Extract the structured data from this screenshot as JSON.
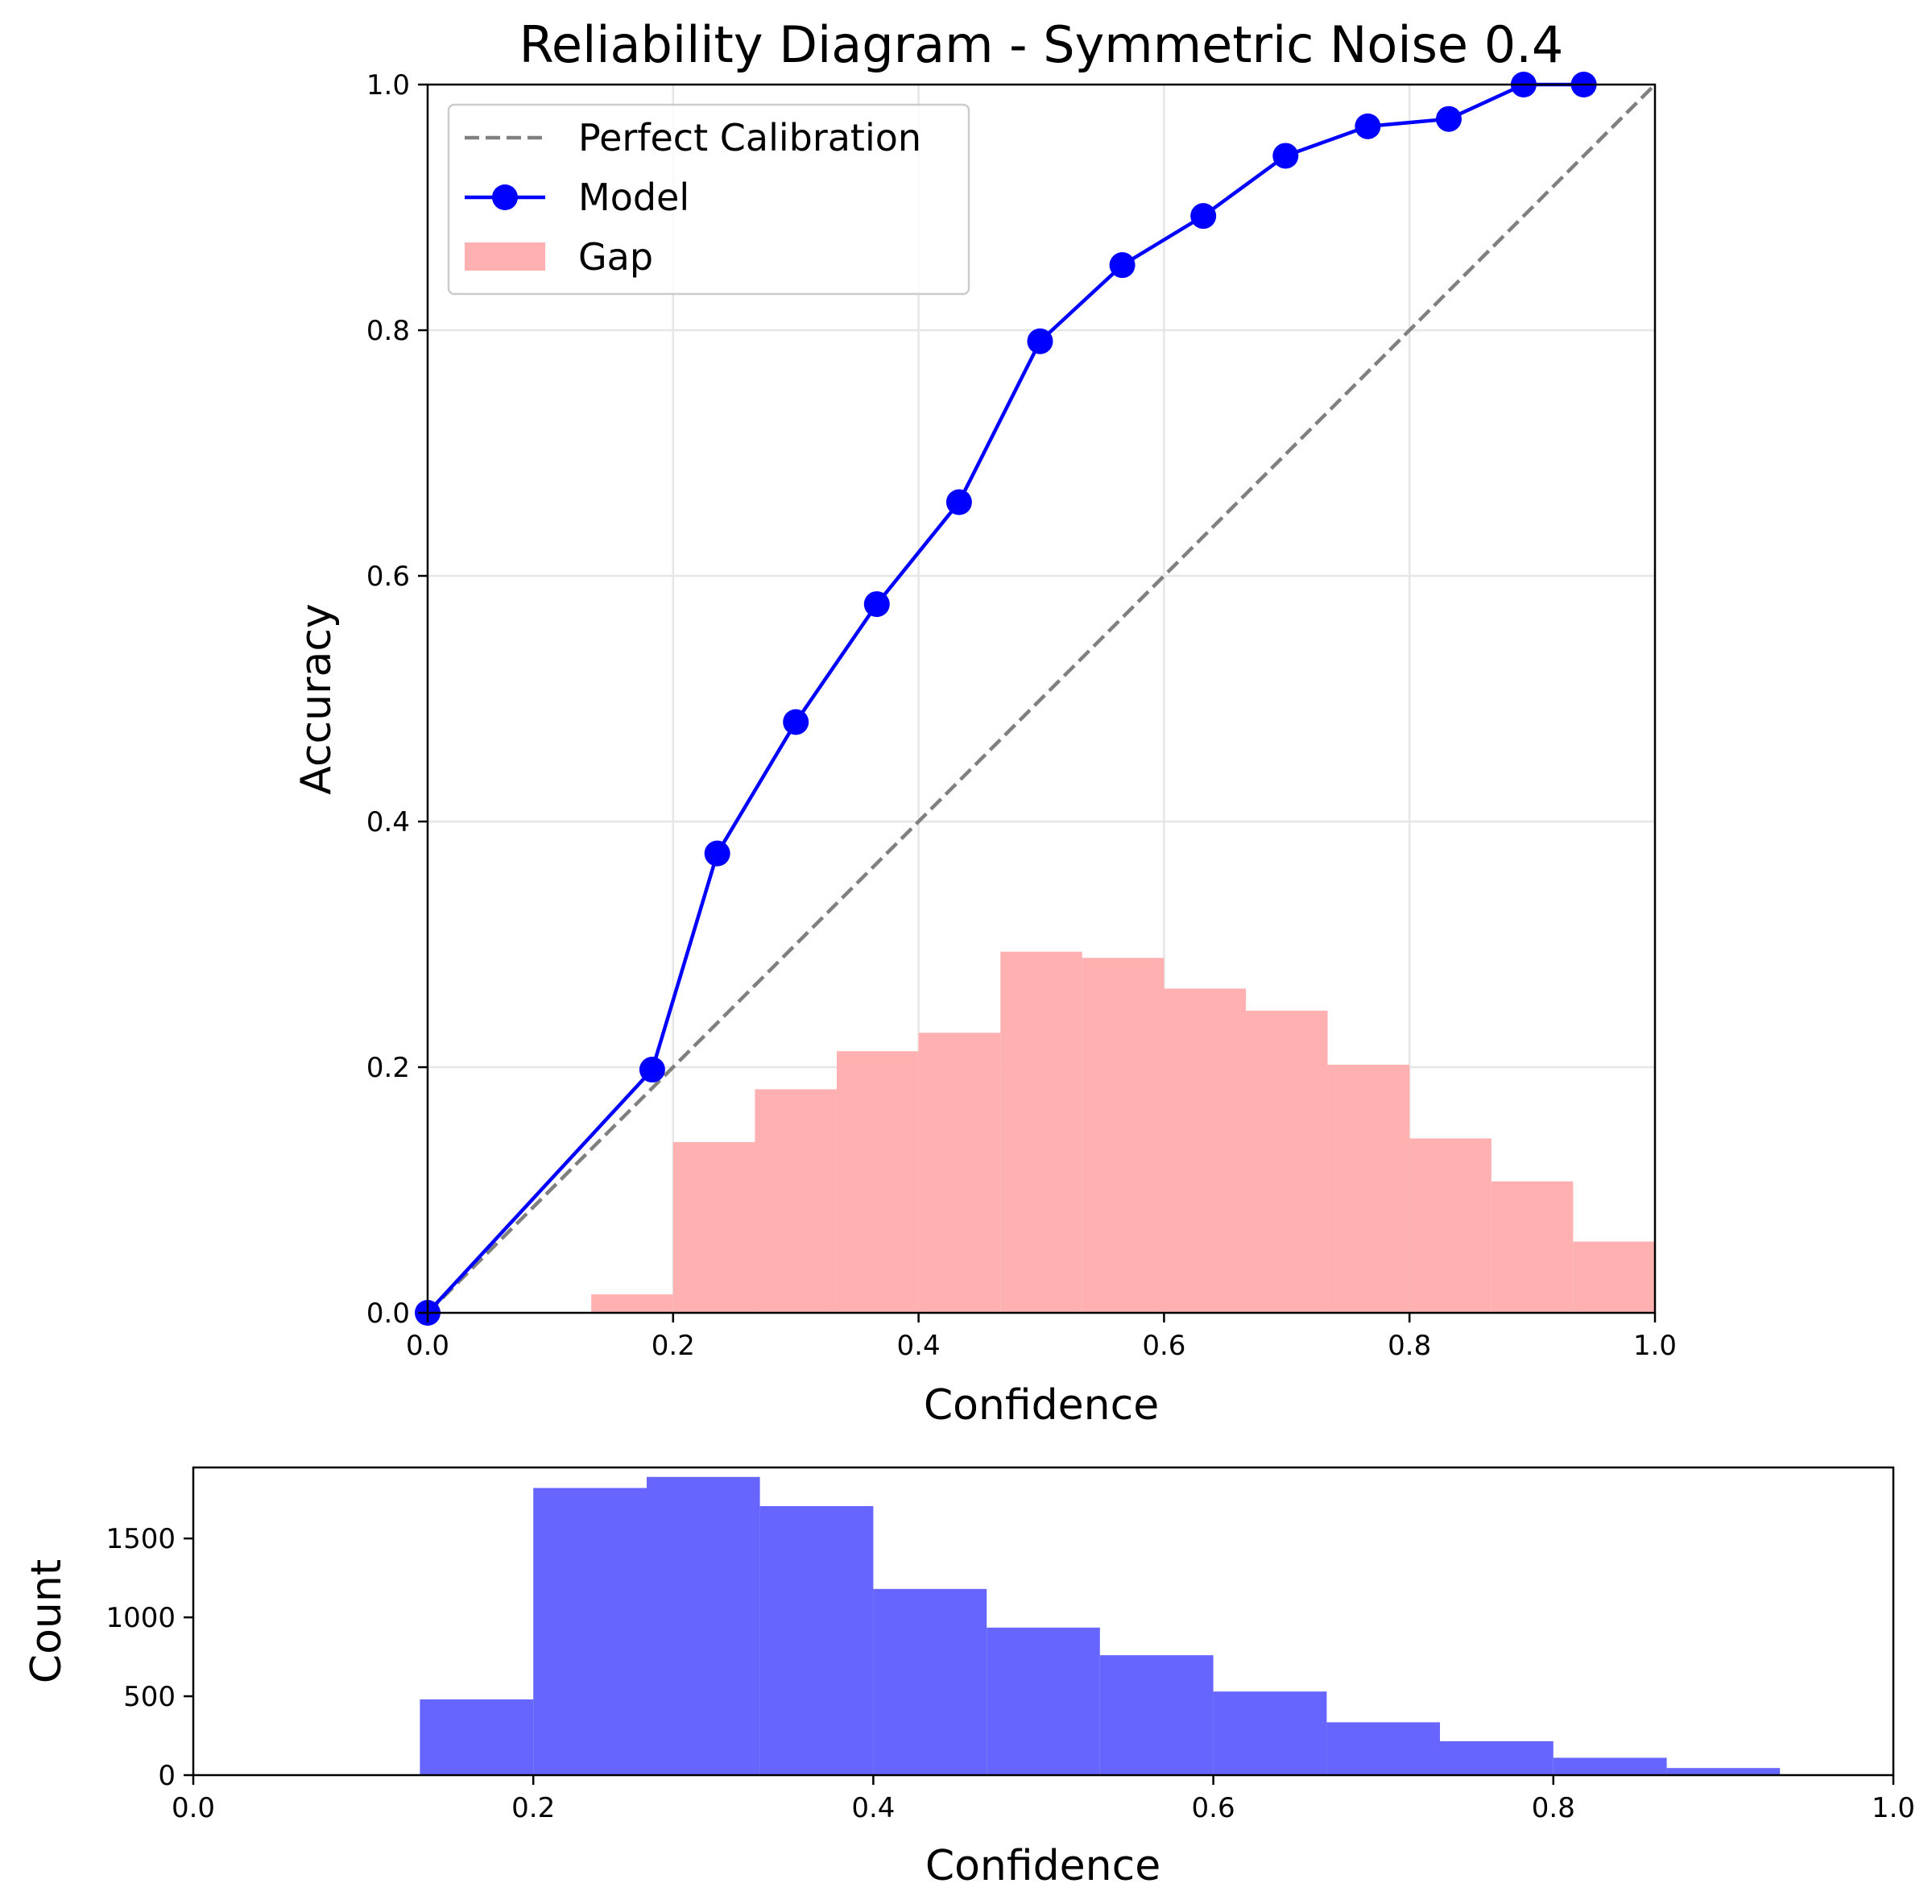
{
  "colors": {
    "model": "#0000ff",
    "diagonal": "#808080",
    "gap": "#ffb1b1",
    "hist": "#6666ff",
    "grid": "#e6e6e6"
  },
  "chart_data": [
    {
      "type": "line",
      "title": "Reliability Diagram - Symmetric Noise 0.4",
      "xlabel": "Confidence",
      "ylabel": "Accuracy",
      "xlim": [
        0,
        1
      ],
      "ylim": [
        0,
        1
      ],
      "xticks": [
        "0.0",
        "0.2",
        "0.4",
        "0.6",
        "0.8",
        "1.0"
      ],
      "yticks": [
        "0.0",
        "0.2",
        "0.4",
        "0.6",
        "0.8",
        "1.0"
      ],
      "grid": true,
      "legend": {
        "placement": "top-left",
        "entries": [
          {
            "label": "Perfect Calibration",
            "icon": "dashed-line"
          },
          {
            "label": "Model",
            "icon": "line-marker"
          },
          {
            "label": "Gap",
            "icon": "patch"
          }
        ]
      },
      "series": [
        {
          "name": "Perfect Calibration",
          "type": "line",
          "style": "dashed",
          "x": [
            0,
            1
          ],
          "y": [
            0,
            1
          ]
        },
        {
          "name": "Model",
          "type": "line",
          "marker": "circle",
          "x": [
            0.0,
            0.183,
            0.236,
            0.3,
            0.366,
            0.433,
            0.499,
            0.566,
            0.632,
            0.699,
            0.766,
            0.832,
            0.893,
            0.942
          ],
          "y": [
            0.0,
            0.198,
            0.374,
            0.481,
            0.577,
            0.66,
            0.791,
            0.853,
            0.893,
            0.942,
            0.966,
            0.972,
            1.0,
            1.0
          ]
        },
        {
          "name": "Gap",
          "type": "bar",
          "bin_edges": [
            0.0,
            0.0667,
            0.1333,
            0.2,
            0.2667,
            0.3333,
            0.4,
            0.4667,
            0.5333,
            0.6,
            0.6667,
            0.7333,
            0.8,
            0.8667,
            0.9333,
            1.0
          ],
          "values": [
            0.0,
            0.0,
            0.015,
            0.139,
            0.182,
            0.213,
            0.228,
            0.294,
            0.289,
            0.264,
            0.246,
            0.202,
            0.142,
            0.107,
            0.058
          ]
        }
      ]
    },
    {
      "type": "bar",
      "xlabel": "Confidence",
      "ylabel": "Count",
      "xlim": [
        0,
        1
      ],
      "ylim": [
        0,
        1950
      ],
      "xticks": [
        "0.0",
        "0.2",
        "0.4",
        "0.6",
        "0.8",
        "1.0"
      ],
      "yticks": [
        "0",
        "500",
        "1000",
        "1500"
      ],
      "ytick_values": [
        0,
        500,
        1000,
        1500
      ],
      "grid": false,
      "bin_edges": [
        0.0,
        0.0667,
        0.1333,
        0.2,
        0.2667,
        0.3333,
        0.4,
        0.4667,
        0.5333,
        0.6,
        0.6667,
        0.7333,
        0.8,
        0.8667,
        0.9333,
        1.0
      ],
      "values": [
        0,
        0,
        480,
        1820,
        1890,
        1705,
        1180,
        935,
        760,
        530,
        335,
        215,
        110,
        45,
        0
      ]
    }
  ]
}
